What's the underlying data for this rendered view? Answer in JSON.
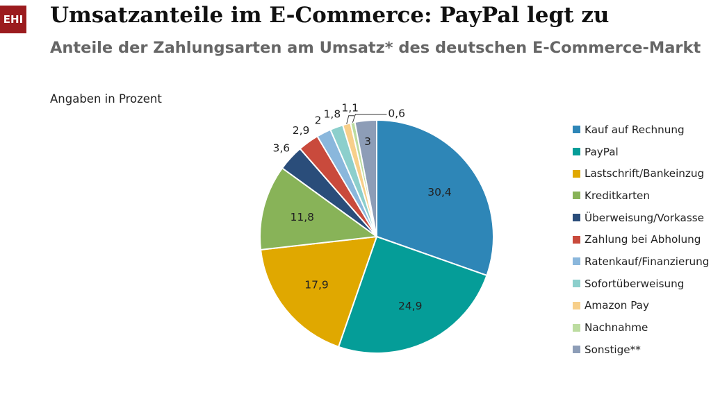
{
  "header": {
    "logo_text": "EHI",
    "title": "Umsatzanteile im E-Commerce: PayPal legt zu",
    "subtitle": "Anteile der Zahlungsarten am Umsatz* des deutschen E-Commerce-Markt"
  },
  "chart_data": {
    "type": "pie",
    "title": "Umsatzanteile im E-Commerce: PayPal legt zu",
    "subtitle": "Anteile der Zahlungsarten am Umsatz* des deutschen E-Commerce-Markt",
    "unit_note": "Angaben in Prozent",
    "start": "12 o'clock",
    "direction": "clockwise",
    "legend_position": "right",
    "slices": [
      {
        "label": "Kauf auf Rechnung",
        "value": 30.4,
        "display": "30,4",
        "color": "#2e86b7"
      },
      {
        "label": "PayPal",
        "value": 24.9,
        "display": "24,9",
        "color": "#059d98"
      },
      {
        "label": "Lastschrift/Bankeinzug",
        "value": 17.9,
        "display": "17,9",
        "color": "#e0a800"
      },
      {
        "label": "Kreditkarten",
        "value": 11.8,
        "display": "11,8",
        "color": "#88b358"
      },
      {
        "label": "Überweisung/Vorkasse",
        "value": 3.6,
        "display": "3,6",
        "color": "#2a4d7a"
      },
      {
        "label": "Zahlung bei Abholung",
        "value": 2.9,
        "display": "2,9",
        "color": "#c94a3c"
      },
      {
        "label": "Ratenkauf/Finanzierung",
        "value": 2,
        "display": "2",
        "color": "#8ab7dc"
      },
      {
        "label": "Sofortüberweisung",
        "value": 1.8,
        "display": "1,8",
        "color": "#8ccfcc"
      },
      {
        "label": "Amazon Pay",
        "value": 1.1,
        "display": "1,1",
        "color": "#f7cf8a"
      },
      {
        "label": "Nachnahme",
        "value": 0.6,
        "display": "0,6",
        "color": "#bcdca0"
      },
      {
        "label": "Sonstige**",
        "value": 3,
        "display": "3",
        "color": "#8d9db7"
      }
    ]
  }
}
